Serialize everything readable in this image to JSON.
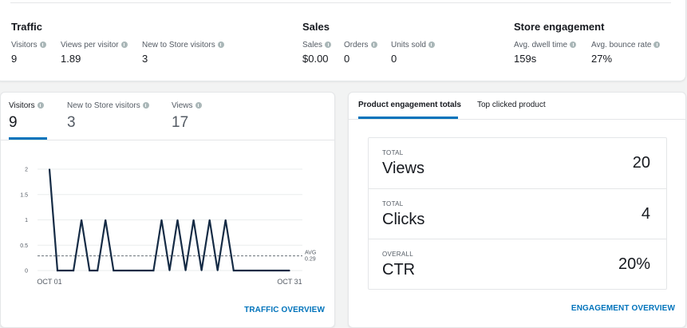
{
  "summary": {
    "sections": [
      {
        "title": "Traffic",
        "metrics": [
          {
            "label": "Visitors",
            "value": "9"
          },
          {
            "label": "Views per visitor",
            "value": "1.89"
          },
          {
            "label": "New to Store visitors",
            "value": "3"
          }
        ]
      },
      {
        "title": "Sales",
        "metrics": [
          {
            "label": "Sales",
            "value": "$0.00"
          },
          {
            "label": "Orders",
            "value": "0"
          },
          {
            "label": "Units sold",
            "value": "0"
          }
        ]
      },
      {
        "title": "Store engagement",
        "metrics": [
          {
            "label": "Avg. dwell time",
            "value": "159s"
          },
          {
            "label": "Avg. bounce rate",
            "value": "27%"
          }
        ]
      }
    ]
  },
  "traffic_card": {
    "metrics": [
      {
        "label": "Visitors",
        "value": "9"
      },
      {
        "label": "New to Store visitors",
        "value": "3"
      },
      {
        "label": "Views",
        "value": "17"
      }
    ],
    "selected_metric": "Visitors",
    "footer_link": "TRAFFIC OVERVIEW"
  },
  "chart_data": {
    "type": "line",
    "x_tick_labels": [
      "OCT 01",
      "OCT 31"
    ],
    "x": [
      1,
      2,
      3,
      4,
      5,
      6,
      7,
      8,
      9,
      10,
      11,
      12,
      13,
      14,
      15,
      16,
      17,
      18,
      19,
      20,
      21,
      22,
      23,
      24,
      25,
      26,
      27,
      28,
      29,
      30,
      31
    ],
    "series": [
      {
        "values": [
          2,
          0,
          0,
          0,
          1,
          0,
          0,
          1,
          0,
          0,
          0,
          0,
          0,
          0,
          1,
          0,
          1,
          0,
          1,
          0,
          1,
          0,
          1,
          0,
          0,
          0,
          0,
          0,
          0,
          0,
          0
        ]
      }
    ],
    "y_ticks": [
      0,
      0.5,
      1,
      1.5,
      2
    ],
    "y_tick_labels": [
      "0",
      "0.5",
      "1",
      "1.5",
      "2"
    ],
    "ylim": [
      0,
      2
    ],
    "average": {
      "label": "AVG",
      "value": 0.29,
      "value_label": "0.29"
    },
    "line_color": "#152b45",
    "grid": true
  },
  "engagement_card": {
    "tabs": [
      {
        "label": "Product engagement totals",
        "selected": true
      },
      {
        "label": "Top clicked product",
        "selected": false
      }
    ],
    "rows": [
      {
        "label": "TOTAL",
        "name": "Views",
        "value": "20"
      },
      {
        "label": "TOTAL",
        "name": "Clicks",
        "value": "4"
      },
      {
        "label": "OVERALL",
        "name": "CTR",
        "value": "20%"
      }
    ],
    "footer_link": "ENGAGEMENT OVERVIEW"
  },
  "colors": {
    "accent": "#0073bb",
    "text": "#16191f",
    "muted": "#545b64",
    "border": "#e4e6e8",
    "background": "#f2f3f3"
  }
}
